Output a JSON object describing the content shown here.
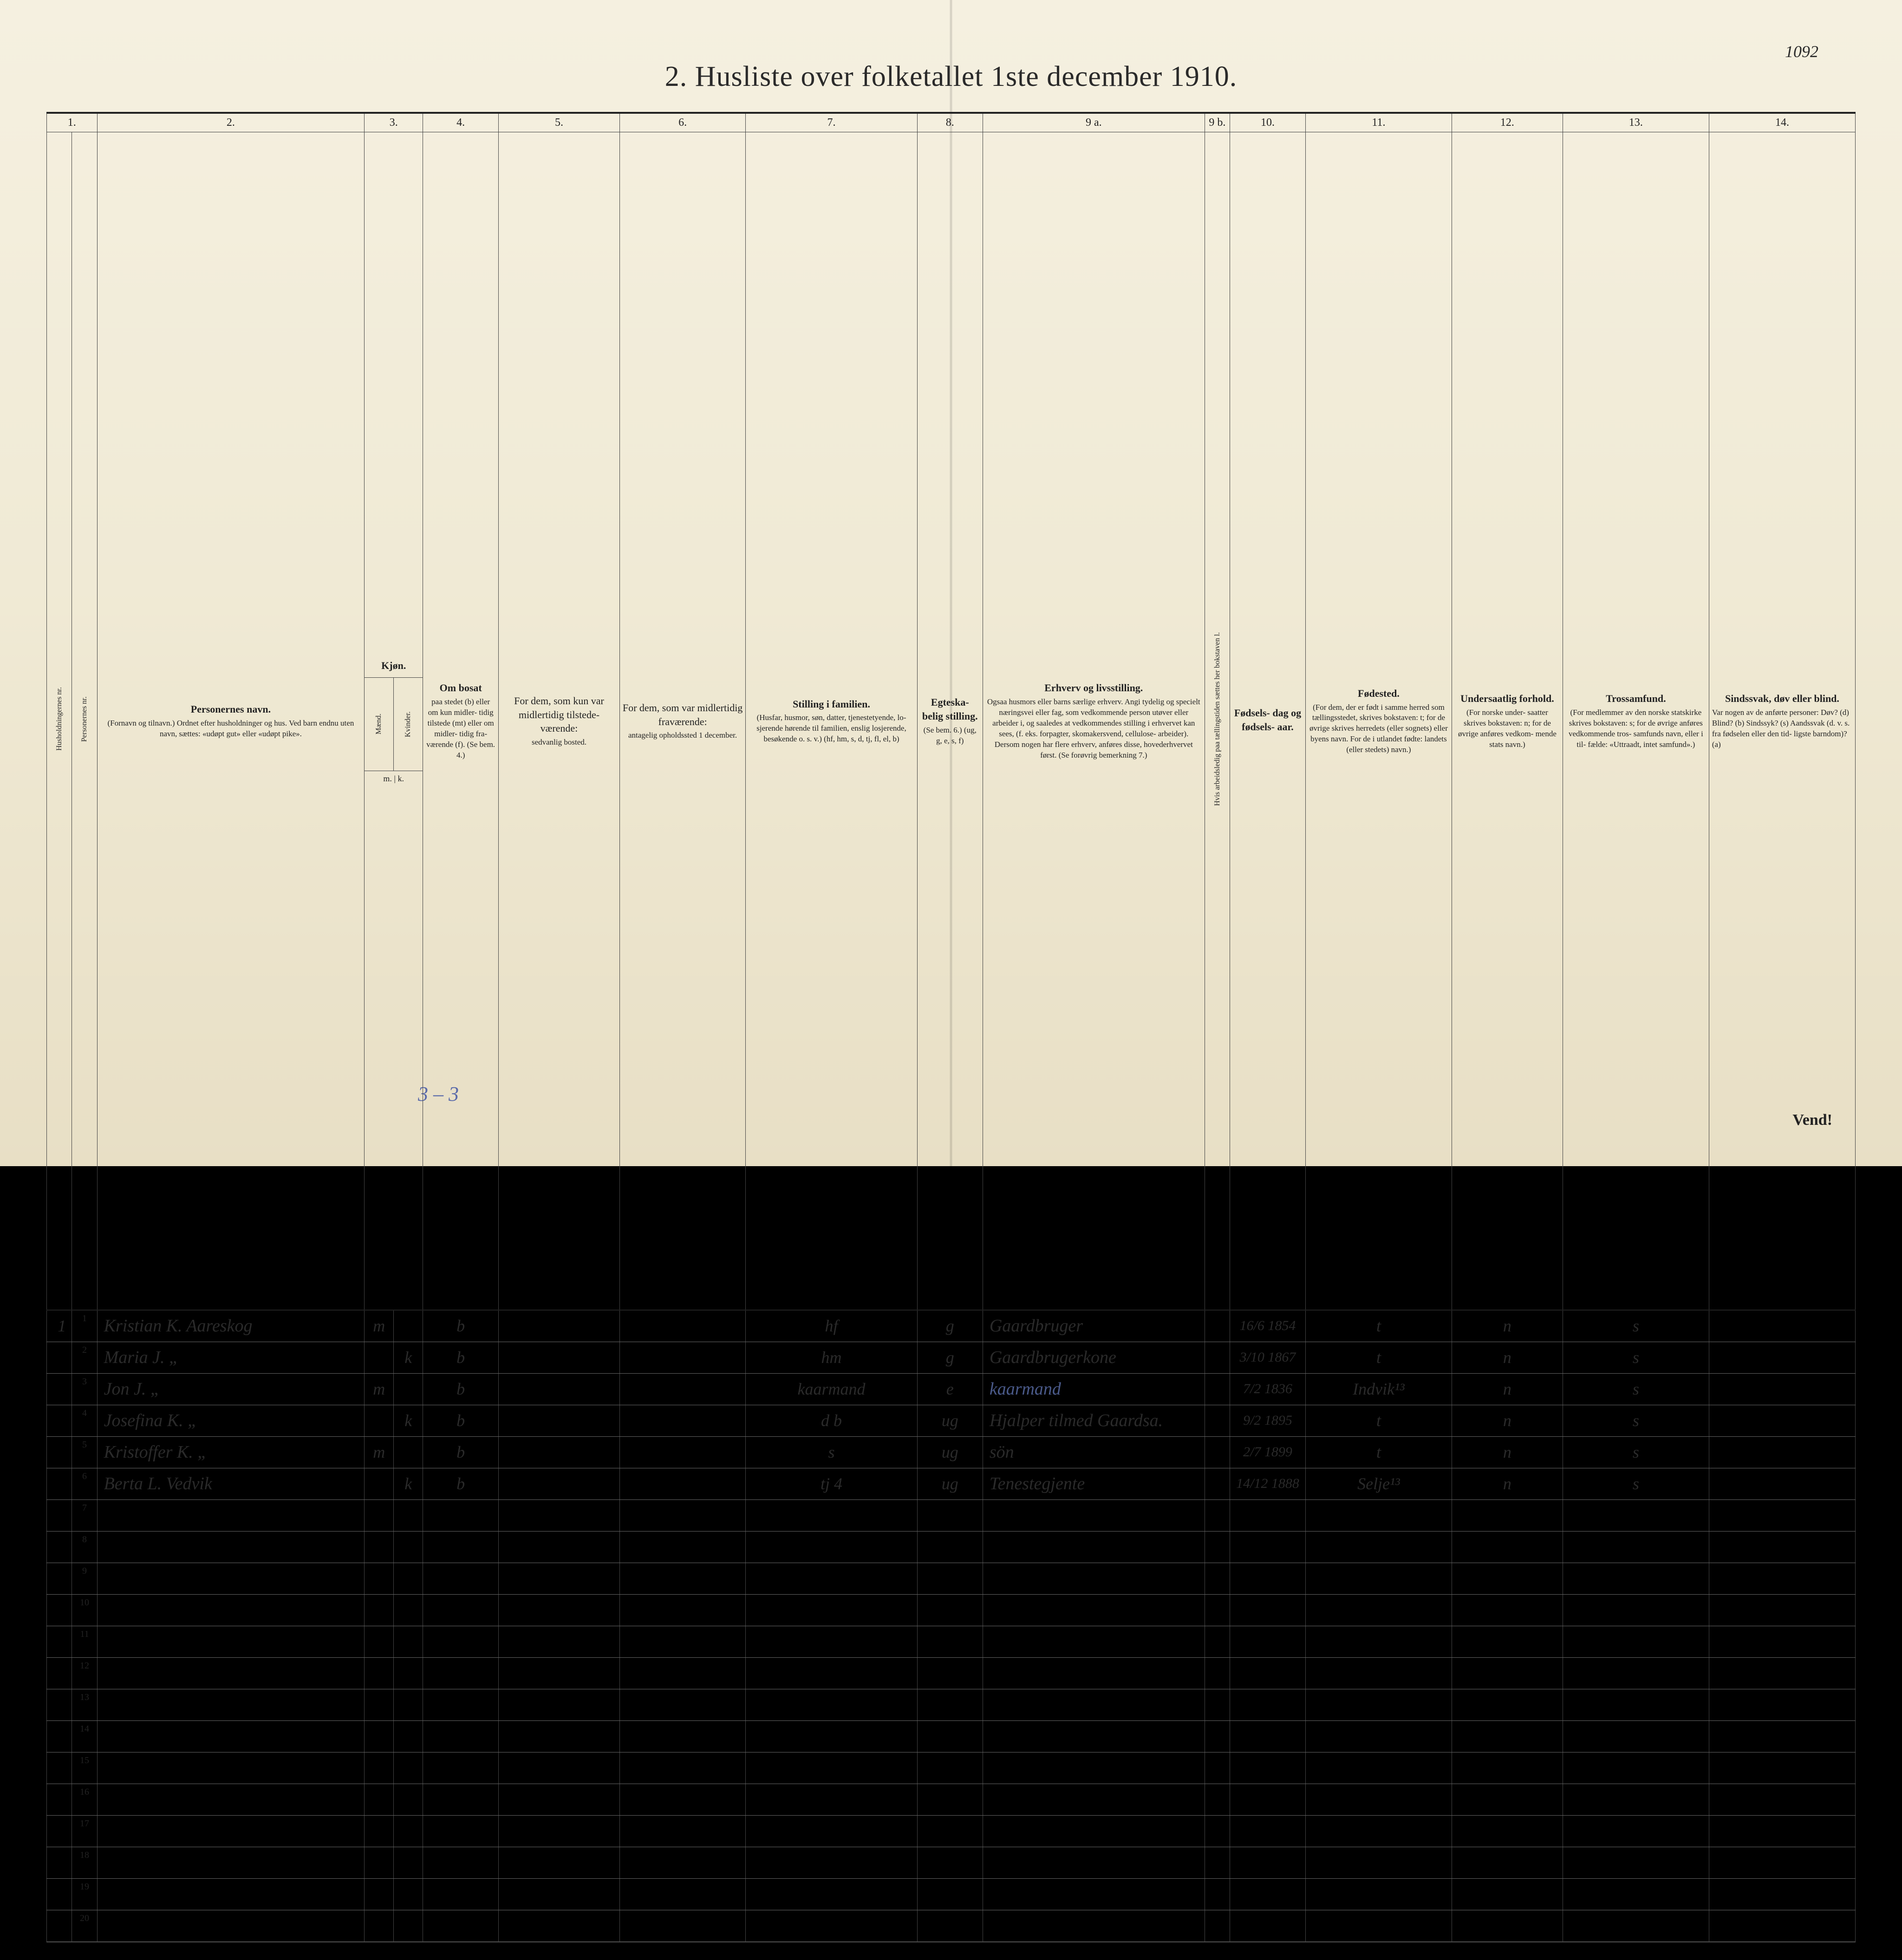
{
  "page_annotation": "1092",
  "title": "2.  Husliste over folketallet 1ste december 1910.",
  "footer_page": "2",
  "bottom_tally": "3 – 3",
  "vend": "Vend!",
  "colors": {
    "paper": "#f0ead5",
    "ink": "#2a2a2a",
    "blue_ink": "#4a5a8a",
    "rule": "#444"
  },
  "col_numbers": [
    "1.",
    "",
    "2.",
    "3.",
    "",
    "4.",
    "5.",
    "6.",
    "7.",
    "8.",
    "9 a.",
    "9 b.",
    "10.",
    "11.",
    "12.",
    "13.",
    "14."
  ],
  "headers": {
    "c1a": "Husholdningernes nr.",
    "c1b": "Personernes nr.",
    "c2_title": "Personernes navn.",
    "c2_sub": "(Fornavn og tilnavn.)\nOrdnet efter husholdninger og hus.\nVed barn endnu uten navn, sættes: «udøpt gut» eller «udøpt pike».",
    "c3_title": "Kjøn.",
    "c3a": "Mænd.",
    "c3b": "Kvinder.",
    "c3_sub": "m. | k.",
    "c4_title": "Om bosat",
    "c4_sub": "paa stedet (b) eller om kun midler- tidig tilstede (mt) eller om midler- tidig fra- værende (f). (Se bem. 4.)",
    "c5_title": "For dem, som kun var midlertidig tilstede- værende:",
    "c5_sub": "sedvanlig bosted.",
    "c6_title": "For dem, som var midlertidig fraværende:",
    "c6_sub": "antagelig opholdssted 1 december.",
    "c7_title": "Stilling i familien.",
    "c7_sub": "(Husfar, husmor, søn, datter, tjenestetyende, lo- sjerende hørende til familien, enslig losjerende, besøkende o. s. v.)\n(hf, hm, s, d, tj, fl, el, b)",
    "c8_title": "Egteska- belig stilling.",
    "c8_sub": "(Se bem. 6.)\n(ug, g, e, s, f)",
    "c9a_title": "Erhverv og livsstilling.",
    "c9a_sub": "Ogsaa husmors eller barns særlige erhverv. Angi tydelig og specielt næringsvei eller fag, som vedkommende person utøver eller arbeider i, og saaledes at vedkommendes stilling i erhvervet kan sees, (f. eks. forpagter, skomakersvend, cellulose- arbeider). Dersom nogen har flere erhverv, anføres disse, hovederhvervet først.\n(Se forøvrig bemerkning 7.)",
    "c9b": "Hvis arbeidsledig paa tællingstiden sættes her bokstaven l.",
    "c10_title": "Fødsels- dag og fødsels- aar.",
    "c11_title": "Fødested.",
    "c11_sub": "(For dem, der er født i samme herred som tællingsstedet, skrives bokstaven: t; for de øvrige skrives herredets (eller sognets) eller byens navn. For de i utlandet fødte: landets (eller stedets) navn.)",
    "c12_title": "Undersaatlig forhold.",
    "c12_sub": "(For norske under- saatter skrives bokstaven: n; for de øvrige anføres vedkom- mende stats navn.)",
    "c13_title": "Trossamfund.",
    "c13_sub": "(For medlemmer av den norske statskirke skrives bokstaven: s; for de øvrige anføres vedkommende tros- samfunds navn, eller i til- fælde: «Uttraadt, intet samfund».)",
    "c14_title": "Sindssvak, døv eller blind.",
    "c14_sub": "Var nogen av de anførte personer:\nDøv?       (d)\nBlind?      (b)\nSindssyk?  (s)\nAandssvak (d. v. s. fra fødselen eller den tid- ligste barndom)?  (a)"
  },
  "rows": [
    {
      "hh": "1",
      "pn": "1",
      "name": "Kristian K. Aareskog",
      "sex_m": "m",
      "sex_k": "",
      "res": "b",
      "c5": "",
      "c6": "",
      "fam": "hf",
      "mar": "g",
      "occ": "Gaardbruger",
      "c9b": "",
      "birth": "16/6 1854",
      "place": "t",
      "nat": "n",
      "rel": "s",
      "c14": ""
    },
    {
      "hh": "",
      "pn": "2",
      "name": "Maria J.          „",
      "sex_m": "",
      "sex_k": "k",
      "res": "b",
      "c5": "",
      "c6": "",
      "fam": "hm",
      "mar": "g",
      "occ": "Gaardbrugerkone",
      "c9b": "",
      "birth": "3/10 1867",
      "place": "t",
      "nat": "n",
      "rel": "s",
      "c14": ""
    },
    {
      "hh": "",
      "pn": "3",
      "name": "Jon     J.          „",
      "sex_m": "m",
      "sex_k": "",
      "res": "b",
      "c5": "",
      "c6": "",
      "fam": "kaarmand",
      "mar": "e",
      "occ": "kaarmand",
      "occ_blue": true,
      "c9b": "",
      "birth": "7/2 1836",
      "place": "Indvik¹³",
      "nat": "n",
      "rel": "s",
      "c14": ""
    },
    {
      "hh": "",
      "pn": "4",
      "name": "Josefina K.        „",
      "sex_m": "",
      "sex_k": "k",
      "res": "b",
      "c5": "",
      "c6": "",
      "fam": "d      b",
      "mar": "ug",
      "occ": "Hjalper tilmed Gaardsa.",
      "c9b": "",
      "birth": "9/2 1895",
      "place": "t",
      "nat": "n",
      "rel": "s",
      "c14": ""
    },
    {
      "hh": "",
      "pn": "5",
      "name": "Kristoffer K.      „",
      "sex_m": "m",
      "sex_k": "",
      "res": "b",
      "c5": "",
      "c6": "",
      "fam": "s",
      "mar": "ug",
      "occ": "sön",
      "c9b": "",
      "birth": "2/7 1899",
      "place": "t",
      "nat": "n",
      "rel": "s",
      "c14": ""
    },
    {
      "hh": "",
      "pn": "6",
      "name": "Berta L. Vedvik",
      "sex_m": "",
      "sex_k": "k",
      "res": "b",
      "c5": "",
      "c6": "",
      "fam": "tj     4",
      "mar": "ug",
      "occ": "Tenestegjente",
      "c9b": "",
      "birth": "14/12 1888",
      "place": "Selje¹³",
      "nat": "n",
      "rel": "s",
      "c14": ""
    }
  ],
  "empty_rows": [
    7,
    8,
    9,
    10,
    11,
    12,
    13,
    14,
    15,
    16,
    17,
    18,
    19,
    20
  ]
}
